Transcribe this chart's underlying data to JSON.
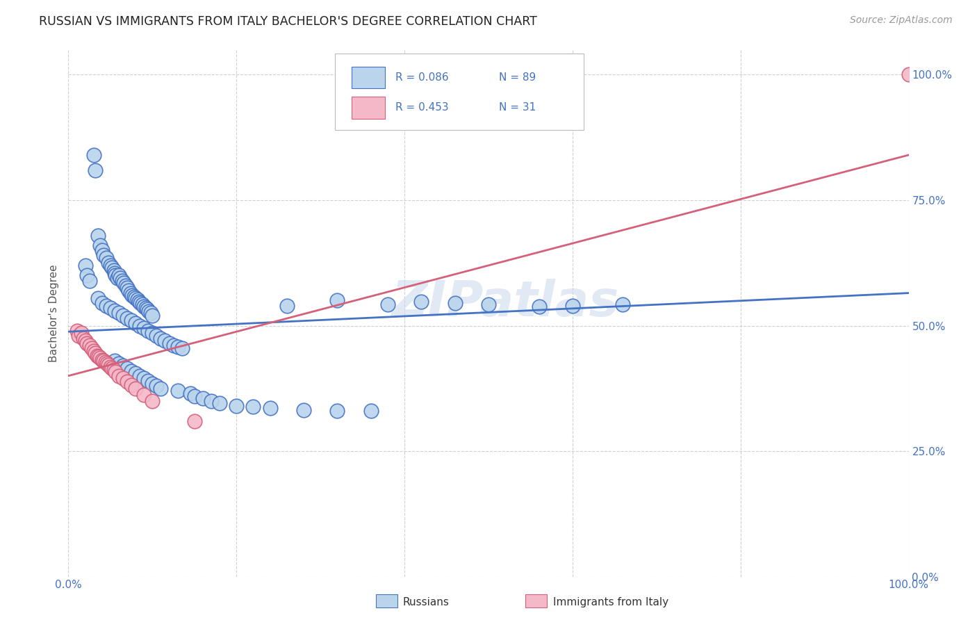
{
  "title": "RUSSIAN VS IMMIGRANTS FROM ITALY BACHELOR'S DEGREE CORRELATION CHART",
  "source": "Source: ZipAtlas.com",
  "ylabel": "Bachelor's Degree",
  "legend_label1": "Russians",
  "legend_label2": "Immigrants from Italy",
  "r1": "0.086",
  "n1": "89",
  "r2": "0.453",
  "n2": "31",
  "blue_fill": "#bad4ec",
  "blue_edge": "#4472c4",
  "pink_fill": "#f4b8c8",
  "pink_edge": "#d4607a",
  "blue_line_color": "#4472c4",
  "pink_line_color": "#d4607a",
  "watermark_color": "#c8d8ec",
  "background_color": "#ffffff",
  "grid_color": "#d0d0d0",
  "title_color": "#222222",
  "source_color": "#999999",
  "tick_color": "#4472c4",
  "ylabel_color": "#555555",
  "blue_scatter": [
    [
      0.02,
      0.62
    ],
    [
      0.022,
      0.6
    ],
    [
      0.025,
      0.59
    ],
    [
      0.03,
      0.84
    ],
    [
      0.032,
      0.81
    ],
    [
      0.035,
      0.68
    ],
    [
      0.038,
      0.66
    ],
    [
      0.04,
      0.65
    ],
    [
      0.042,
      0.64
    ],
    [
      0.045,
      0.635
    ],
    [
      0.048,
      0.625
    ],
    [
      0.05,
      0.62
    ],
    [
      0.052,
      0.615
    ],
    [
      0.054,
      0.61
    ],
    [
      0.055,
      0.605
    ],
    [
      0.056,
      0.6
    ],
    [
      0.058,
      0.595
    ],
    [
      0.06,
      0.6
    ],
    [
      0.062,
      0.595
    ],
    [
      0.064,
      0.59
    ],
    [
      0.066,
      0.585
    ],
    [
      0.068,
      0.58
    ],
    [
      0.07,
      0.575
    ],
    [
      0.072,
      0.57
    ],
    [
      0.074,
      0.565
    ],
    [
      0.076,
      0.56
    ],
    [
      0.078,
      0.558
    ],
    [
      0.08,
      0.555
    ],
    [
      0.082,
      0.552
    ],
    [
      0.084,
      0.548
    ],
    [
      0.086,
      0.545
    ],
    [
      0.088,
      0.542
    ],
    [
      0.09,
      0.538
    ],
    [
      0.092,
      0.535
    ],
    [
      0.094,
      0.532
    ],
    [
      0.096,
      0.528
    ],
    [
      0.098,
      0.525
    ],
    [
      0.1,
      0.52
    ],
    [
      0.035,
      0.555
    ],
    [
      0.04,
      0.545
    ],
    [
      0.045,
      0.54
    ],
    [
      0.05,
      0.535
    ],
    [
      0.055,
      0.53
    ],
    [
      0.06,
      0.525
    ],
    [
      0.065,
      0.52
    ],
    [
      0.07,
      0.515
    ],
    [
      0.075,
      0.51
    ],
    [
      0.08,
      0.505
    ],
    [
      0.085,
      0.5
    ],
    [
      0.09,
      0.495
    ],
    [
      0.095,
      0.49
    ],
    [
      0.1,
      0.485
    ],
    [
      0.105,
      0.48
    ],
    [
      0.11,
      0.475
    ],
    [
      0.115,
      0.47
    ],
    [
      0.12,
      0.465
    ],
    [
      0.125,
      0.46
    ],
    [
      0.13,
      0.458
    ],
    [
      0.135,
      0.455
    ],
    [
      0.055,
      0.43
    ],
    [
      0.06,
      0.425
    ],
    [
      0.065,
      0.42
    ],
    [
      0.07,
      0.415
    ],
    [
      0.075,
      0.41
    ],
    [
      0.08,
      0.405
    ],
    [
      0.085,
      0.4
    ],
    [
      0.09,
      0.395
    ],
    [
      0.095,
      0.39
    ],
    [
      0.1,
      0.385
    ],
    [
      0.105,
      0.38
    ],
    [
      0.11,
      0.375
    ],
    [
      0.13,
      0.37
    ],
    [
      0.145,
      0.365
    ],
    [
      0.15,
      0.36
    ],
    [
      0.16,
      0.355
    ],
    [
      0.17,
      0.35
    ],
    [
      0.18,
      0.345
    ],
    [
      0.2,
      0.34
    ],
    [
      0.22,
      0.338
    ],
    [
      0.24,
      0.336
    ],
    [
      0.28,
      0.332
    ],
    [
      0.32,
      0.33
    ],
    [
      0.36,
      0.33
    ],
    [
      0.26,
      0.54
    ],
    [
      0.32,
      0.55
    ],
    [
      0.38,
      0.542
    ],
    [
      0.42,
      0.548
    ],
    [
      0.46,
      0.545
    ],
    [
      0.5,
      0.542
    ],
    [
      0.56,
      0.538
    ],
    [
      0.6,
      0.54
    ],
    [
      0.66,
      0.542
    ]
  ],
  "pink_scatter": [
    [
      0.01,
      0.49
    ],
    [
      0.012,
      0.48
    ],
    [
      0.015,
      0.485
    ],
    [
      0.018,
      0.475
    ],
    [
      0.02,
      0.47
    ],
    [
      0.022,
      0.465
    ],
    [
      0.025,
      0.46
    ],
    [
      0.028,
      0.455
    ],
    [
      0.03,
      0.45
    ],
    [
      0.032,
      0.445
    ],
    [
      0.034,
      0.44
    ],
    [
      0.036,
      0.438
    ],
    [
      0.038,
      0.435
    ],
    [
      0.04,
      0.432
    ],
    [
      0.042,
      0.43
    ],
    [
      0.044,
      0.428
    ],
    [
      0.046,
      0.425
    ],
    [
      0.048,
      0.422
    ],
    [
      0.05,
      0.418
    ],
    [
      0.052,
      0.415
    ],
    [
      0.054,
      0.412
    ],
    [
      0.056,
      0.408
    ],
    [
      0.06,
      0.4
    ],
    [
      0.065,
      0.395
    ],
    [
      0.07,
      0.388
    ],
    [
      0.075,
      0.382
    ],
    [
      0.08,
      0.375
    ],
    [
      0.09,
      0.362
    ],
    [
      0.1,
      0.35
    ],
    [
      0.15,
      0.31
    ],
    [
      1.0,
      1.0
    ]
  ],
  "blue_line_x": [
    0.0,
    1.0
  ],
  "blue_line_y": [
    0.488,
    0.565
  ],
  "pink_line_x": [
    0.0,
    1.0
  ],
  "pink_line_y": [
    0.4,
    0.84
  ],
  "xlim": [
    0.0,
    1.0
  ],
  "ylim": [
    0.0,
    1.05
  ],
  "xtick_positions": [
    0.0,
    0.2,
    0.4,
    0.6,
    0.8,
    1.0
  ],
  "ytick_positions": [
    0.0,
    0.25,
    0.5,
    0.75,
    1.0
  ],
  "xtick_labels": [
    "0.0%",
    "",
    "",
    "",
    "",
    "100.0%"
  ],
  "ytick_labels": [
    "0.0%",
    "25.0%",
    "50.0%",
    "75.0%",
    "100.0%"
  ]
}
